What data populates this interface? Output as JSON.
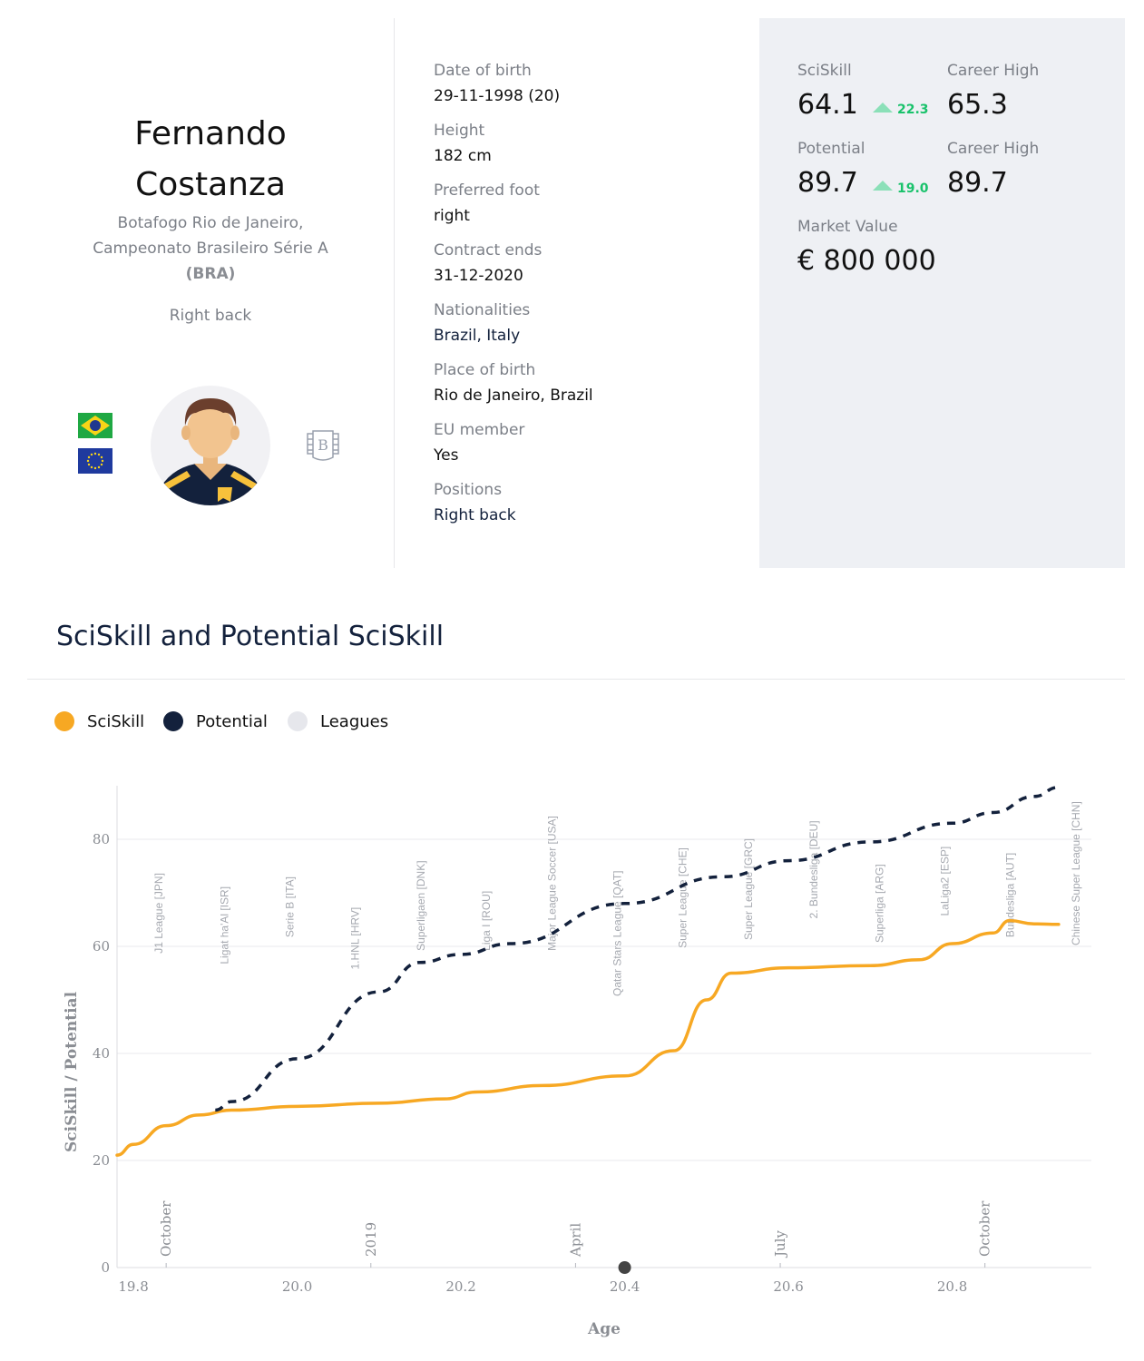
{
  "player": {
    "first_name": "Fernando",
    "last_name": "Costanza",
    "club_line1": "Botafogo Rio de Janeiro,",
    "club_line2": "Campeonato Brasileiro Série A",
    "club_country": "(BRA)",
    "position": "Right back"
  },
  "details": [
    {
      "label": "Date of birth",
      "value": "29-11-1998 (20)"
    },
    {
      "label": "Height",
      "value": "182 cm"
    },
    {
      "label": "Preferred foot",
      "value": "right"
    },
    {
      "label": "Contract ends",
      "value": "31-12-2020"
    },
    {
      "label": "Nationalities",
      "value": "Brazil, Italy"
    },
    {
      "label": "Place of birth",
      "value": "Rio de Janeiro, Brazil"
    },
    {
      "label": "EU member",
      "value": "Yes"
    },
    {
      "label": "Positions",
      "value": "Right back"
    }
  ],
  "stats": {
    "sciskill_label": "SciSkill",
    "sciskill_value": "64.1",
    "sciskill_delta": "22.3",
    "sciskill_high_label": "Career High",
    "sciskill_high_value": "65.3",
    "potential_label": "Potential",
    "potential_value": "89.7",
    "potential_delta": "19.0",
    "potential_high_label": "Career High",
    "potential_high_value": "89.7",
    "market_label": "Market Value",
    "market_value": "€ 800 000"
  },
  "icons": {
    "flag1": "brazil-flag-icon",
    "flag2": "eu-flag-icon",
    "avatar": "player-avatar",
    "badge": "club-badge-icon",
    "up": "triangle-up-icon"
  },
  "colors": {
    "sciskill": "#f7a823",
    "potential": "#13213c",
    "leagues": "#e6e7ec",
    "delta": "#19c26b",
    "stats_bg": "#eef0f4"
  },
  "section_title": "SciSkill and Potential SciSkill",
  "legend": [
    {
      "label": "SciSkill",
      "color": "#f7a823"
    },
    {
      "label": "Potential",
      "color": "#13213c"
    },
    {
      "label": "Leagues",
      "color": "#e6e7ec"
    }
  ],
  "chart_data": {
    "type": "line",
    "xlabel": "Age",
    "ylabel": "SciSkill / Potential",
    "xlim": [
      19.78,
      20.97
    ],
    "ylim": [
      0,
      90
    ],
    "x_ticks": [
      "19.8",
      "20.0",
      "20.2",
      "20.4",
      "20.6",
      "20.8"
    ],
    "y_ticks": [
      "0",
      "20",
      "40",
      "60",
      "80"
    ],
    "date_markers": [
      {
        "label": "October",
        "x": 19.84
      },
      {
        "label": "2019",
        "x": 20.09
      },
      {
        "label": "April",
        "x": 20.34
      },
      {
        "label": "July",
        "x": 20.59
      },
      {
        "label": "October",
        "x": 20.84
      }
    ],
    "current_age_marker": 20.4,
    "series": [
      {
        "name": "SciSkill",
        "color": "#f7a823",
        "dash": false,
        "x": [
          19.78,
          19.8,
          19.84,
          19.88,
          19.92,
          20.0,
          20.1,
          20.18,
          20.22,
          20.3,
          20.4,
          20.46,
          20.5,
          20.53,
          20.6,
          20.7,
          20.76,
          20.8,
          20.85,
          20.87,
          20.9,
          20.93
        ],
        "y": [
          21,
          23,
          26.5,
          28.5,
          29.4,
          30.1,
          30.7,
          31.5,
          32.8,
          34,
          35.8,
          40.5,
          50,
          55,
          56,
          56.4,
          57.5,
          60.5,
          62.5,
          64.8,
          64.2,
          64.1
        ]
      },
      {
        "name": "Potential",
        "color": "#13213c",
        "dash": true,
        "x": [
          19.9,
          19.92,
          20.0,
          20.1,
          20.15,
          20.2,
          20.26,
          20.4,
          20.52,
          20.6,
          20.7,
          20.8,
          20.85,
          20.9,
          20.93
        ],
        "y": [
          29.4,
          31,
          39,
          51.5,
          57,
          58.5,
          60.5,
          68,
          73,
          76,
          79.5,
          83,
          85,
          88,
          89.7
        ]
      }
    ],
    "leagues": [
      {
        "label": "J1 League [JPN]",
        "x0": 19.79,
        "x1": 19.87,
        "ranges": [
          [
            58.5,
            68.5
          ],
          [
            52.5,
            58
          ]
        ]
      },
      {
        "label": "Ligat ha'Al [ISR]",
        "x0": 19.87,
        "x1": 19.95,
        "ranges": [
          [
            57,
            69.5
          ],
          [
            49,
            56
          ]
        ]
      },
      {
        "label": "Serie B [ITA]",
        "x0": 19.95,
        "x1": 20.03,
        "ranges": [
          [
            61.5,
            70
          ],
          [
            56.5,
            61
          ]
        ]
      },
      {
        "label": "1.HNL [HRV]",
        "x0": 20.03,
        "x1": 20.11,
        "ranges": [
          [
            56,
            70.5
          ],
          [
            45.5,
            55
          ]
        ]
      },
      {
        "label": "Superligaen [DNK]",
        "x0": 20.11,
        "x1": 20.19,
        "ranges": [
          [
            59,
            71
          ],
          [
            51,
            58.5
          ]
        ]
      },
      {
        "label": "Liga I [ROU]",
        "x0": 20.19,
        "x1": 20.27,
        "ranges": [
          [
            59,
            71
          ],
          [
            52.5,
            58.5
          ]
        ]
      },
      {
        "label": "Major League Soccer [USA]",
        "x0": 20.27,
        "x1": 20.35,
        "ranges": [
          [
            59,
            72
          ],
          [
            53,
            58.5
          ]
        ]
      },
      {
        "label": "Qatar Stars League [QAT]",
        "x0": 20.35,
        "x1": 20.43,
        "ranges": [
          [
            50.5,
            73
          ],
          [
            39.5,
            50
          ]
        ]
      },
      {
        "label": "Super League [CHE]",
        "x0": 20.43,
        "x1": 20.51,
        "ranges": [
          [
            59.5,
            73
          ],
          [
            52,
            59
          ]
        ]
      },
      {
        "label": "Super League [GRC]",
        "x0": 20.51,
        "x1": 20.59,
        "ranges": [
          [
            61,
            74.5
          ],
          [
            53,
            60.5
          ]
        ]
      },
      {
        "label": "2. Bundesliga [DEU]",
        "x0": 20.59,
        "x1": 20.67,
        "ranges": [
          [
            65,
            75
          ],
          [
            60,
            64.5
          ]
        ]
      },
      {
        "label": "Superliga [ARG]",
        "x0": 20.67,
        "x1": 20.75,
        "ranges": [
          [
            60.5,
            75
          ],
          [
            53.5,
            60
          ]
        ]
      },
      {
        "label": "LaLiga2 [ESP]",
        "x0": 20.75,
        "x1": 20.83,
        "ranges": [
          [
            65.5,
            75.5
          ],
          [
            59.5,
            65
          ]
        ]
      },
      {
        "label": "Bundesliga [AUT]",
        "x0": 20.83,
        "x1": 20.91,
        "ranges": [
          [
            61.5,
            76
          ],
          [
            52.5,
            61
          ]
        ]
      },
      {
        "label": "Chinese Super League [CHN]",
        "x0": 20.91,
        "x1": 20.99,
        "ranges": [
          [
            60,
            77
          ],
          [
            51,
            59.5
          ]
        ]
      }
    ]
  }
}
